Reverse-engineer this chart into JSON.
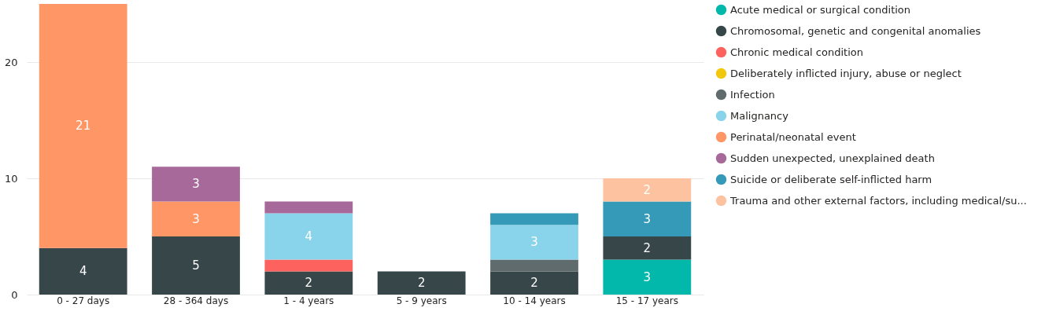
{
  "chart_data": {
    "type": "bar",
    "stacked": true,
    "categories": [
      "0 - 27 days",
      "28 - 364 days",
      "1 - 4 years",
      "5 - 9 years",
      "10 - 14 years",
      "15 - 17 years"
    ],
    "series": [
      {
        "name": "Acute medical or surgical condition",
        "color": "#01b8aa",
        "values": [
          null,
          null,
          null,
          null,
          null,
          3
        ],
        "value_labels": [
          null,
          null,
          null,
          null,
          null,
          "3"
        ]
      },
      {
        "name": "Chromosomal, genetic and congenital anomalies",
        "color": "#374649",
        "values": [
          4,
          5,
          2,
          2,
          2,
          2
        ],
        "value_labels": [
          "4",
          "5",
          "2",
          "2",
          "2",
          "2"
        ]
      },
      {
        "name": "Chronic medical condition",
        "color": "#fd625e",
        "values": [
          null,
          null,
          1,
          null,
          null,
          null
        ],
        "value_labels": [
          null,
          null,
          null,
          null,
          null,
          null
        ]
      },
      {
        "name": "Deliberately inflicted injury, abuse or neglect",
        "color": "#f2c80f",
        "values": [
          null,
          null,
          null,
          null,
          null,
          null
        ],
        "value_labels": [
          null,
          null,
          null,
          null,
          null,
          null
        ]
      },
      {
        "name": "Infection",
        "color": "#5f6b6d",
        "values": [
          null,
          null,
          null,
          null,
          1,
          null
        ],
        "value_labels": [
          null,
          null,
          null,
          null,
          null,
          null
        ]
      },
      {
        "name": "Malignancy",
        "color": "#8ad4eb",
        "values": [
          null,
          null,
          4,
          null,
          3,
          null
        ],
        "value_labels": [
          null,
          null,
          "4",
          null,
          "3",
          null
        ]
      },
      {
        "name": "Perinatal/neonatal event",
        "color": "#fe9666",
        "values": [
          21,
          3,
          null,
          null,
          null,
          null
        ],
        "value_labels": [
          "21",
          "3",
          null,
          null,
          null,
          null
        ]
      },
      {
        "name": "Sudden unexpected, unexplained death",
        "color": "#a66999",
        "values": [
          null,
          3,
          1,
          null,
          null,
          null
        ],
        "value_labels": [
          null,
          "3",
          null,
          null,
          null,
          null
        ]
      },
      {
        "name": "Suicide or deliberate self-inflicted harm",
        "color": "#3599b8",
        "values": [
          null,
          null,
          null,
          null,
          1,
          3
        ],
        "value_labels": [
          null,
          null,
          null,
          null,
          null,
          "3"
        ]
      },
      {
        "name": "Trauma and other external factors, including medical/su...",
        "color": "#fdc3a0",
        "values": [
          null,
          null,
          null,
          null,
          null,
          2
        ],
        "value_labels": [
          null,
          null,
          null,
          null,
          null,
          "2"
        ]
      }
    ],
    "ylim": [
      0,
      25
    ],
    "yticks": [
      0,
      10,
      20
    ],
    "grid": "y",
    "legend": "right"
  }
}
